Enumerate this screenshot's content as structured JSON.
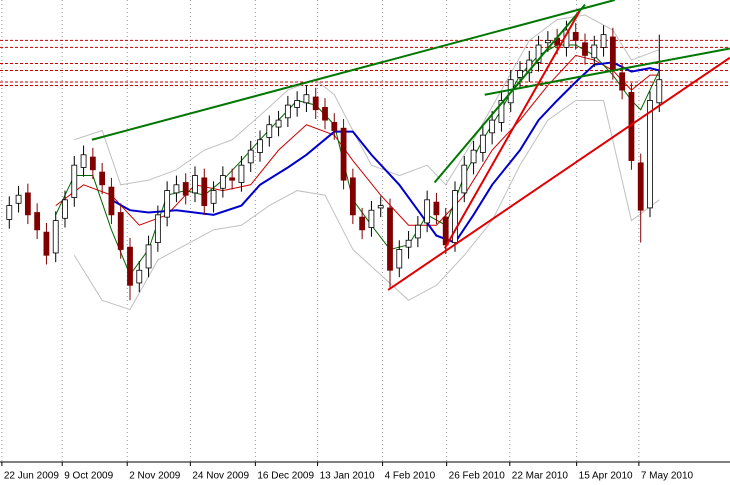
{
  "chart_data": {
    "type": "candlestick",
    "xlim": [
      -1,
      76
    ],
    "ylim": [
      850,
      1250
    ],
    "grid": true,
    "xticks": [
      {
        "value": -0.8,
        "label": "22 Jun 2009"
      },
      {
        "value": 5.7,
        "label": "9 Oct 2009"
      },
      {
        "value": 12.7,
        "label": "2 Nov 2009"
      },
      {
        "value": 19.5,
        "label": "24 Nov 2009"
      },
      {
        "value": 26.5,
        "label": "16 Dec 2009"
      },
      {
        "value": 33.2,
        "label": "13 Jan 2010"
      },
      {
        "value": 40.2,
        "label": "4 Feb 2010"
      },
      {
        "value": 47.1,
        "label": "26 Feb 2010"
      },
      {
        "value": 53.9,
        "label": "22 Mar 2010"
      },
      {
        "value": 61.1,
        "label": "15 Apr 2010"
      },
      {
        "value": 67.8,
        "label": "7 May 2010"
      }
    ],
    "up_color": "#ffffff",
    "down_color": "#800000",
    "open": [
      1060,
      1074,
      1083,
      1066,
      1049,
      1031,
      1061,
      1079,
      1105,
      1114,
      1101,
      1088,
      1066,
      1036,
      1005,
      1018,
      1040,
      1062,
      1083,
      1092,
      1083,
      1096,
      1074,
      1087,
      1096,
      1092,
      1109,
      1118,
      1131,
      1140,
      1148,
      1157,
      1161,
      1166,
      1157,
      1144,
      1139,
      1096,
      1062,
      1053,
      1070,
      1070,
      1018,
      1036,
      1044,
      1057,
      1075,
      1062,
      1040,
      1083,
      1109,
      1118,
      1135,
      1144,
      1161,
      1183,
      1187,
      1196,
      1213,
      1217,
      1209,
      1222,
      1213,
      1200,
      1209,
      1218,
      1187,
      1170,
      1109,
      1070,
      1161
    ],
    "high": [
      1080,
      1089,
      1091,
      1074,
      1057,
      1067,
      1085,
      1115,
      1124,
      1122,
      1109,
      1096,
      1074,
      1044,
      1024,
      1046,
      1072,
      1093,
      1098,
      1100,
      1106,
      1104,
      1093,
      1106,
      1104,
      1115,
      1128,
      1137,
      1150,
      1154,
      1167,
      1171,
      1176,
      1174,
      1165,
      1152,
      1147,
      1104,
      1070,
      1076,
      1080,
      1078,
      1042,
      1050,
      1063,
      1085,
      1083,
      1070,
      1093,
      1115,
      1128,
      1141,
      1154,
      1171,
      1189,
      1197,
      1206,
      1219,
      1223,
      1225,
      1232,
      1230,
      1221,
      1219,
      1228,
      1226,
      1195,
      1178,
      1117,
      1171,
      1220
    ],
    "low": [
      1052,
      1066,
      1056,
      1043,
      1021,
      1023,
      1053,
      1071,
      1097,
      1095,
      1082,
      1056,
      1026,
      990,
      997,
      1010,
      1032,
      1054,
      1075,
      1073,
      1075,
      1064,
      1066,
      1079,
      1086,
      1084,
      1101,
      1110,
      1123,
      1132,
      1140,
      1149,
      1153,
      1147,
      1138,
      1129,
      1086,
      1056,
      1043,
      1045,
      1062,
      1000,
      1010,
      1026,
      1036,
      1049,
      1056,
      1030,
      1032,
      1075,
      1099,
      1110,
      1125,
      1136,
      1153,
      1173,
      1179,
      1188,
      1205,
      1203,
      1201,
      1207,
      1194,
      1192,
      1201,
      1181,
      1164,
      1103,
      1040,
      1062,
      1153
    ],
    "close": [
      1072,
      1081,
      1064,
      1051,
      1029,
      1059,
      1077,
      1107,
      1116,
      1103,
      1090,
      1064,
      1034,
      1003,
      1016,
      1038,
      1064,
      1085,
      1090,
      1081,
      1098,
      1072,
      1085,
      1098,
      1094,
      1107,
      1120,
      1129,
      1142,
      1146,
      1159,
      1163,
      1168,
      1155,
      1146,
      1137,
      1094,
      1064,
      1051,
      1068,
      1072,
      1016,
      1034,
      1042,
      1055,
      1077,
      1064,
      1038,
      1085,
      1107,
      1120,
      1133,
      1146,
      1163,
      1181,
      1189,
      1198,
      1211,
      1215,
      1211,
      1224,
      1215,
      1202,
      1211,
      1220,
      1189,
      1172,
      1111,
      1068,
      1163,
      1181
    ],
    "overlays": [
      {
        "color": "#c0c0c0",
        "x": [
          7,
          10,
          12,
          15,
          18,
          21,
          24,
          27,
          30,
          33,
          35,
          37,
          39,
          42,
          45,
          47,
          50,
          53,
          56,
          59,
          62,
          65,
          67,
          70
        ],
        "values": [
          1129,
          1137,
          1090,
          1094,
          1103,
          1120,
          1129,
          1150,
          1172,
          1181,
          1168,
          1137,
          1107,
          1098,
          1107,
          1090,
          1129,
          1172,
          1215,
          1233,
          1237,
          1224,
          1198,
          1207
        ]
      },
      {
        "color": "#c0c0c0",
        "x": [
          7,
          10,
          13,
          16,
          19,
          22,
          25,
          28,
          31,
          34,
          37,
          40,
          43,
          46,
          49,
          52,
          55,
          58,
          61,
          64,
          67,
          70
        ],
        "values": [
          1029,
          990,
          982,
          1025,
          1038,
          1051,
          1055,
          1072,
          1085,
          1081,
          1034,
          1012,
          990,
          1003,
          1029,
          1059,
          1107,
          1146,
          1163,
          1163,
          1059,
          1077
        ]
      },
      {
        "color": "#cc0000",
        "x": [
          5,
          8,
          11,
          14,
          17,
          20,
          23,
          26,
          29,
          32,
          35,
          37,
          40,
          43,
          46,
          49,
          52,
          55,
          58,
          61,
          63,
          65,
          67,
          69,
          70
        ],
        "values": [
          1072,
          1090,
          1081,
          1055,
          1064,
          1090,
          1085,
          1090,
          1120,
          1142,
          1133,
          1111,
          1081,
          1055,
          1055,
          1081,
          1120,
          1146,
          1176,
          1202,
          1198,
          1189,
          1172,
          1185,
          1185
        ]
      },
      {
        "color": "#006600",
        "x": [
          5,
          7,
          9,
          11,
          13,
          15,
          17,
          19,
          21,
          23,
          25,
          27,
          29,
          31,
          33,
          35,
          37,
          39,
          41,
          43,
          45,
          47,
          49,
          51,
          53,
          55,
          57,
          59,
          61,
          63,
          65,
          67,
          68,
          69,
          70
        ],
        "values": [
          1064,
          1098,
          1098,
          1051,
          1012,
          1034,
          1081,
          1085,
          1081,
          1094,
          1111,
          1129,
          1146,
          1163,
          1159,
          1142,
          1077,
          1055,
          1034,
          1038,
          1064,
          1055,
          1098,
          1129,
          1155,
          1185,
          1202,
          1211,
          1211,
          1202,
          1185,
          1163,
          1155,
          1172,
          1189
        ]
      },
      {
        "color": "#0000cc",
        "x": [
          11,
          13,
          15,
          18,
          22,
          25,
          27,
          30,
          32,
          35,
          37,
          39,
          42,
          44,
          46,
          48,
          50,
          52,
          55,
          57,
          59,
          61,
          63,
          65,
          67,
          69,
          70
        ],
        "values": [
          1077,
          1068,
          1066,
          1068,
          1064,
          1072,
          1090,
          1105,
          1116,
          1136,
          1136,
          1116,
          1090,
          1068,
          1046,
          1040,
          1064,
          1090,
          1120,
          1146,
          1163,
          1179,
          1194,
          1196,
          1188,
          1191,
          1189
        ]
      }
    ],
    "trendlines": [
      {
        "color": "#007700",
        "x": [
          8.9,
          65.2
        ],
        "values": [
          1129,
          1250
        ]
      },
      {
        "color": "#007700",
        "x": [
          45.8,
          62.0
        ],
        "values": [
          1092,
          1246
        ]
      },
      {
        "color": "#007700",
        "x": [
          51.2,
          77.6
        ],
        "values": [
          1168,
          1208
        ]
      },
      {
        "color": "#e00000",
        "x": [
          40.8,
          77.6
        ],
        "values": [
          999,
          1200
        ]
      },
      {
        "color": "#e00000",
        "x": [
          46.9,
          61.4
        ],
        "values": [
          1035,
          1240
        ]
      }
    ],
    "levels": {
      "color": "#cc0000",
      "values": [
        1215,
        1209,
        1195,
        1189,
        1179,
        1176
      ]
    }
  }
}
